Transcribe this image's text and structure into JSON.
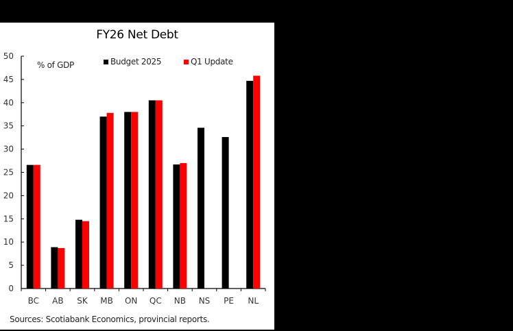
{
  "chart_data": {
    "type": "bar",
    "title": "FY26 Net Debt",
    "ylabel": "% of GDP",
    "xlabel": "",
    "ylim": [
      0,
      50
    ],
    "yticks": [
      0,
      5,
      10,
      15,
      20,
      25,
      30,
      35,
      40,
      45,
      50
    ],
    "grid": false,
    "legend_position": "top-inside",
    "categories": [
      "BC",
      "AB",
      "SK",
      "MB",
      "ON",
      "QC",
      "NB",
      "NS",
      "PE",
      "NL"
    ],
    "series": [
      {
        "name": "Budget 2025",
        "color": "#000000",
        "values": [
          26.6,
          8.9,
          14.8,
          37.0,
          38.0,
          40.5,
          26.7,
          34.6,
          32.6,
          44.7
        ]
      },
      {
        "name": "Q1 Update",
        "color": "#ff0000",
        "values": [
          26.6,
          8.7,
          14.5,
          37.8,
          38.0,
          40.5,
          27.0,
          null,
          null,
          45.8
        ]
      }
    ],
    "source": "Sources: Scotiabank Economics, provincial reports."
  },
  "labels": {
    "title": "FY26 Net Debt",
    "unit": "% of GDP",
    "legend_budget": "Budget 2025",
    "legend_q1": "Q1 Update",
    "source": "Sources: Scotiabank Economics, provincial reports."
  }
}
